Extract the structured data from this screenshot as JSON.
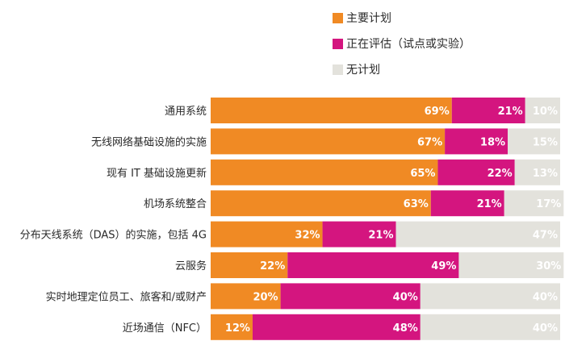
{
  "chart_data": {
    "type": "bar",
    "orientation": "horizontal",
    "stacked": true,
    "unit": "%",
    "categories": [
      "通用系统",
      "无线网络基础设施的实施",
      "现有 IT 基础设施更新",
      "机场系统整合",
      "分布天线系统（DAS）的实施，包括 4G",
      "云服务",
      "实时地理定位员工、旅客和/或财产",
      "近场通信（NFC）"
    ],
    "series": [
      {
        "name": "主要计划",
        "color": "#f08a24",
        "values": [
          69,
          67,
          65,
          63,
          32,
          22,
          20,
          12
        ]
      },
      {
        "name": "正在评估（试点或实验）",
        "color": "#d4157f",
        "values": [
          21,
          18,
          22,
          21,
          21,
          49,
          40,
          48
        ]
      },
      {
        "name": "无计划",
        "color": "#e3e2dc",
        "values": [
          10,
          15,
          13,
          17,
          47,
          30,
          40,
          40
        ]
      }
    ],
    "xlim": [
      0,
      100
    ],
    "legend_position": "top-right",
    "grid": false
  }
}
